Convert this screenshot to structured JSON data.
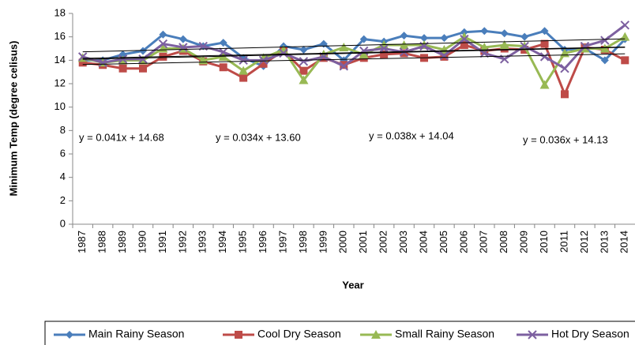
{
  "chart_data": {
    "type": "line",
    "y_label": "Minimum Temp (degree celisus)",
    "x_label": "Year",
    "categories": [
      "1987",
      "1988",
      "1989",
      "1990",
      "1991",
      "1992",
      "1993",
      "1994",
      "1995",
      "1996",
      "1997",
      "1998",
      "1999",
      "2000",
      "2001",
      "2002",
      "2003",
      "2004",
      "2005",
      "2006",
      "2007",
      "2008",
      "2009",
      "2010",
      "2011",
      "2012",
      "2013",
      "2014"
    ],
    "ylim": [
      0,
      18
    ],
    "yticks": [
      0,
      2,
      4,
      6,
      8,
      10,
      12,
      14,
      16,
      18
    ],
    "series": [
      {
        "name": "Main Rainy Season",
        "color": "#4a7ebb",
        "marker": "diamond",
        "values": [
          14.0,
          14.0,
          14.5,
          14.8,
          16.2,
          15.8,
          15.2,
          15.5,
          14.2,
          13.5,
          15.2,
          14.9,
          15.4,
          14.0,
          15.8,
          15.6,
          16.1,
          15.9,
          15.9,
          16.4,
          16.5,
          16.3,
          16.0,
          16.5,
          14.9,
          15.0,
          14.0,
          15.8
        ]
      },
      {
        "name": "Cool Dry Season",
        "color": "#be4b48",
        "marker": "square",
        "values": [
          13.8,
          13.6,
          13.3,
          13.3,
          14.3,
          14.8,
          13.9,
          13.4,
          12.5,
          13.7,
          14.8,
          13.1,
          14.2,
          13.6,
          14.2,
          14.5,
          14.6,
          14.2,
          14.3,
          15.3,
          14.8,
          15.0,
          14.9,
          15.4,
          11.1,
          15.1,
          14.9,
          14.0
        ]
      },
      {
        "name": "Small Rainy Season",
        "color": "#98b954",
        "marker": "triangle",
        "values": [
          14.2,
          13.8,
          14.0,
          14.0,
          15.0,
          15.0,
          14.0,
          14.3,
          13.1,
          14.2,
          14.9,
          12.3,
          14.5,
          15.1,
          14.5,
          15.3,
          15.3,
          15.3,
          14.9,
          16.0,
          15.1,
          15.3,
          15.2,
          11.9,
          14.6,
          15.0,
          15.0,
          16.0
        ]
      },
      {
        "name": "Hot Dry Season",
        "color": "#7d60a0",
        "marker": "x",
        "values": [
          14.3,
          13.8,
          14.1,
          14.1,
          15.4,
          15.1,
          15.2,
          14.7,
          14.0,
          14.0,
          14.6,
          13.9,
          14.3,
          13.5,
          14.8,
          15.0,
          14.7,
          15.2,
          14.4,
          15.8,
          14.6,
          14.1,
          15.2,
          14.3,
          13.3,
          15.2,
          15.7,
          17.0
        ]
      }
    ],
    "trendlines": [
      {
        "label": "y = 0.041x + 14.68",
        "slope": 0.041,
        "intercept": 14.68
      },
      {
        "label": "y = 0.034x + 13.60",
        "slope": 0.034,
        "intercept": 13.6
      },
      {
        "label": "y = 0.038x + 14.04",
        "slope": 0.038,
        "intercept": 14.04
      },
      {
        "label": "y = 0.036x + 14.13",
        "slope": 0.036,
        "intercept": 14.13
      }
    ]
  }
}
